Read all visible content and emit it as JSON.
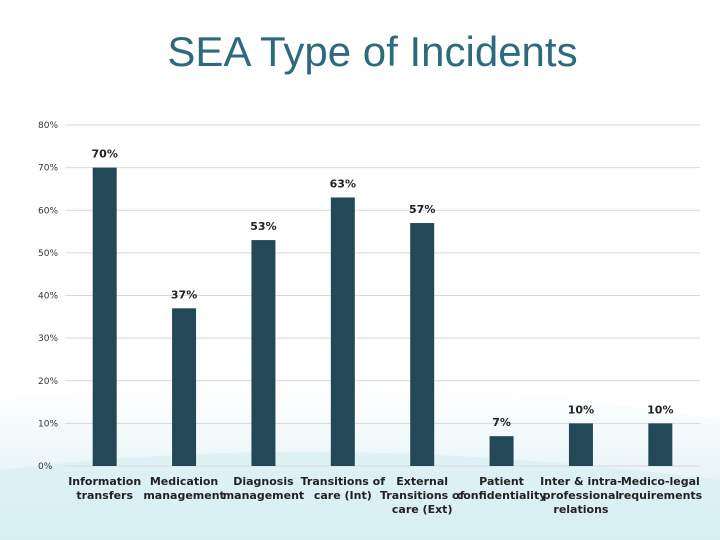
{
  "slide": {
    "title": "SEA Type of Incidents"
  },
  "colors": {
    "bar": "#234858",
    "title": "#2c6a7e",
    "grid": "#d9d9d9",
    "background_accent": "#d6eef2"
  },
  "chart_data": {
    "type": "bar",
    "title": "SEA Type of Incidents",
    "xlabel": "",
    "ylabel": "",
    "ylim": [
      0,
      80
    ],
    "yticks": [
      0,
      10,
      20,
      30,
      40,
      50,
      60,
      70,
      80
    ],
    "ytick_labels": [
      "0%",
      "10%",
      "20%",
      "30%",
      "40%",
      "50%",
      "60%",
      "70%",
      "80%"
    ],
    "grid": true,
    "legend": "none",
    "categories": [
      [
        "Information",
        "transfers"
      ],
      [
        "Medication",
        "management"
      ],
      [
        "Diagnosis",
        "management"
      ],
      [
        "Transitions of",
        "care (Int)"
      ],
      [
        "External",
        "Transitions of",
        "care (Ext)"
      ],
      [
        "Patient",
        "confidentiality"
      ],
      [
        "Inter & intra-",
        "professional",
        "relations"
      ],
      [
        "Medico-legal",
        "requirements"
      ]
    ],
    "values": [
      70,
      37,
      53,
      63,
      57,
      7,
      10,
      10
    ],
    "data_labels": [
      "70%",
      "37%",
      "53%",
      "63%",
      "57%",
      "7%",
      "10%",
      "10%"
    ]
  }
}
